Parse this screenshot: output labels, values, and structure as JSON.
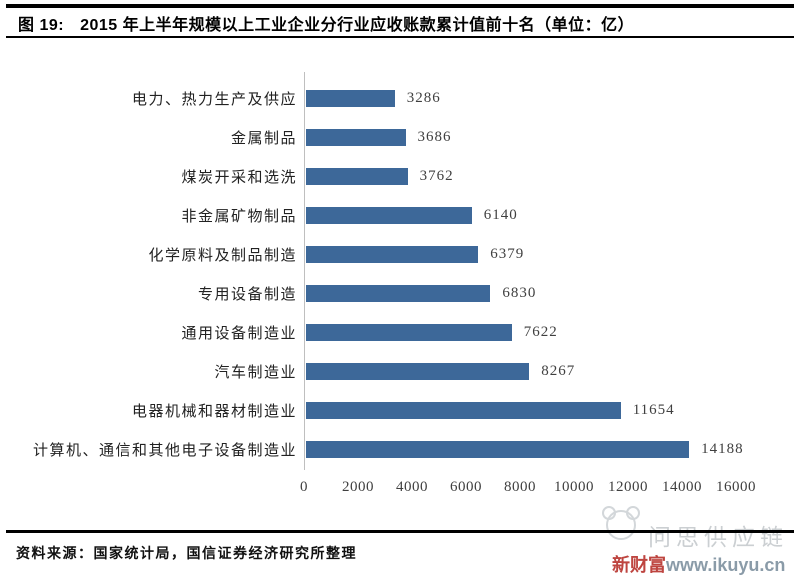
{
  "figure": {
    "label": "图 19:",
    "title": "2015 年上半年规模以上工业企业分行业应收账款累计值前十名（单位：亿）"
  },
  "chart_data": {
    "type": "bar",
    "orientation": "horizontal",
    "title": "2015 年上半年规模以上工业企业分行业应收账款累计值前十名",
    "unit": "亿",
    "categories": [
      "电力、热力生产及供应",
      "金属制品",
      "煤炭开采和选洗",
      "非金属矿物制品",
      "化学原料及制品制造",
      "专用设备制造",
      "通用设备制造业",
      "汽车制造业",
      "电器机械和器材制造业",
      "计算机、通信和其他电子设备制造业"
    ],
    "values": [
      3286,
      3686,
      3762,
      6140,
      6379,
      6830,
      7622,
      8267,
      11654,
      14188
    ],
    "x_ticks": [
      0,
      2000,
      4000,
      6000,
      8000,
      10000,
      12000,
      14000,
      16000
    ],
    "xlim": [
      0,
      16000
    ],
    "bar_color": "#3D6899",
    "axis_line_color": "#BFBFBF",
    "grid": "off",
    "legend": "none",
    "value_labels": "outside-end"
  },
  "footer": {
    "source": "资料来源：国家统计局，国信证券经济研究所整理"
  },
  "watermark": {
    "brand": "问思供应链",
    "site_prefix": "新财富",
    "site_url": "www.ikuyu.cn",
    "brand_color": "#CBCFD2",
    "prefix_color": "#BE4540",
    "url_color": "#8A9BA8"
  }
}
